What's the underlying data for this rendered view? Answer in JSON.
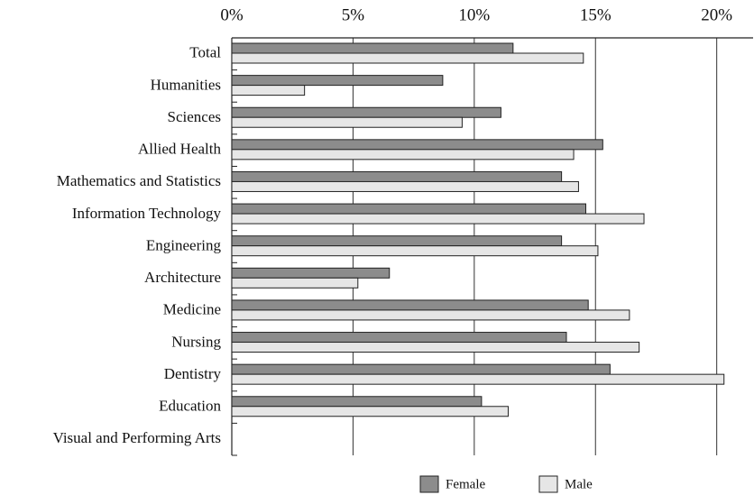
{
  "chart_data": {
    "type": "hbar",
    "categories": [
      "Total",
      "Humanities",
      "Sciences",
      "Allied Health",
      "Mathematics and Statistics",
      "Information Technology",
      "Engineering",
      "Architecture",
      "Medicine",
      "Nursing",
      "Dentistry",
      "Education",
      "Visual and Performing Arts"
    ],
    "series": [
      {
        "name": "Female",
        "color": "#8c8c8c",
        "values": [
          11.6,
          8.7,
          11.1,
          15.3,
          13.6,
          14.6,
          13.6,
          6.5,
          14.7,
          13.8,
          15.6,
          10.3,
          null
        ]
      },
      {
        "name": "Male",
        "color": "#e6e6e6",
        "values": [
          14.5,
          3.0,
          9.5,
          14.1,
          14.3,
          17.0,
          15.1,
          5.2,
          16.4,
          16.8,
          20.3,
          11.4,
          null
        ]
      }
    ],
    "xlim": [
      0,
      21.5
    ],
    "xticks": [
      {
        "value": 0,
        "label": "0%"
      },
      {
        "value": 5,
        "label": "5%"
      },
      {
        "value": 10,
        "label": "10%"
      },
      {
        "value": 15,
        "label": "15%"
      },
      {
        "value": 20,
        "label": "20%"
      }
    ],
    "grid": true,
    "legend": "bottom"
  }
}
